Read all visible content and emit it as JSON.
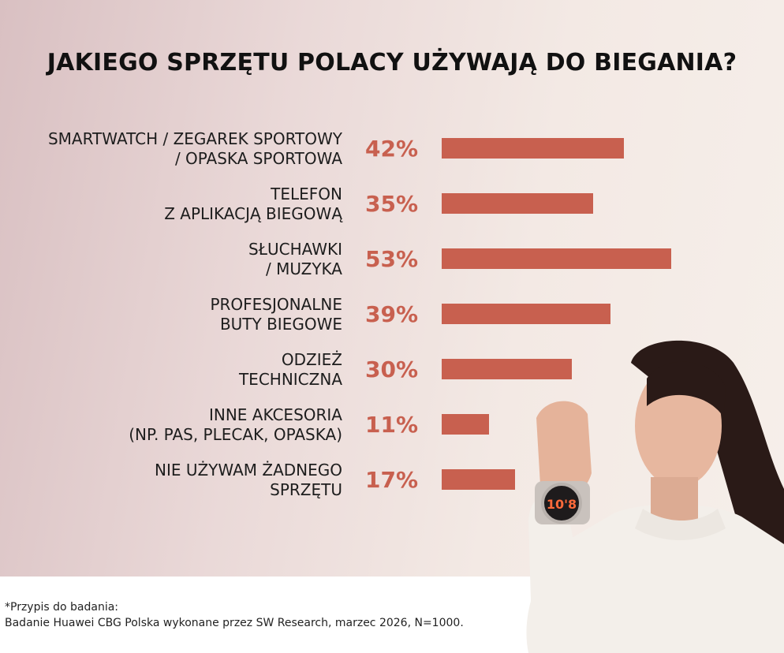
{
  "title": "JAKIEGO SPRZĘTU POLACY UŻYWAJĄ DO BIEGANIA?",
  "chart_data": {
    "type": "bar",
    "orientation": "horizontal",
    "title": "JAKIEGO SPRZĘTU POLACY UŻYWAJĄ DO BIEGANIA?",
    "categories": [
      "SMARTWATCH / ZEGAREK SPORTOWY\n/ OPASKA SPORTOWA",
      "TELEFON\nZ APLIKACJĄ BIEGOWĄ",
      "SŁUCHAWKI\n/ MUZYKA",
      "PROFESJONALNE\nBUTY BIEGOWE",
      "ODZIEŻ\nTECHNICZNA",
      "INNE AKCESORIA\n(NP. PAS, PLECAK, OPASKA)",
      "NIE UŻYWAM ŻADNEGO\nSPRZĘTU"
    ],
    "values": [
      42,
      35,
      53,
      39,
      30,
      11,
      17
    ],
    "value_labels": [
      "42%",
      "35%",
      "53%",
      "39%",
      "30%",
      "11%",
      "17%"
    ],
    "bar_color": "#c8604f",
    "xlim": [
      0,
      53
    ]
  },
  "footnote": {
    "line1": "*Przypis do badania:",
    "line2": "Badanie Huawei CBG Polska wykonane przez SW Research, marzec 2026, N=1000."
  },
  "watch_face_text": "10'8"
}
